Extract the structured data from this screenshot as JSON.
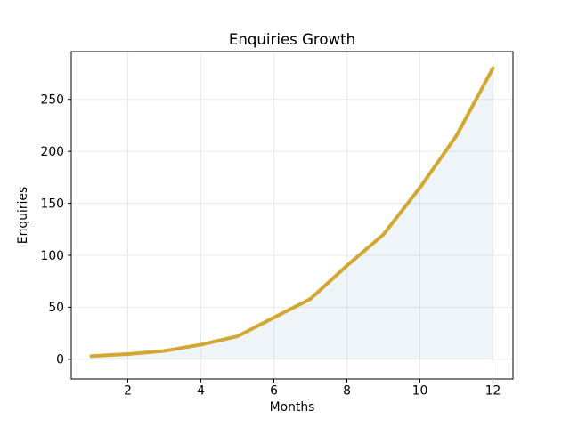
{
  "chart_data": {
    "type": "area",
    "title": "Enquiries Growth",
    "xlabel": "Months",
    "ylabel": "Enquiries",
    "x": [
      1,
      2,
      3,
      4,
      5,
      6,
      7,
      8,
      9,
      10,
      11,
      12
    ],
    "values": [
      3,
      5,
      8,
      14,
      22,
      40,
      58,
      90,
      120,
      165,
      215,
      280
    ],
    "series_name": "Enquiries",
    "x_ticks": [
      2,
      4,
      6,
      8,
      10,
      12
    ],
    "y_ticks": [
      0,
      50,
      100,
      150,
      200,
      250
    ],
    "xlim": [
      0.45,
      12.55
    ],
    "ylim": [
      -19,
      296
    ],
    "baseline": 0,
    "grid": true,
    "legend": "none",
    "colors": {
      "line": "#d2a732",
      "fill": "#4682b4",
      "fill_opacity": 0.09,
      "grid": "#e9e9e9",
      "frame": "#000000",
      "background": "#ffffff"
    }
  }
}
